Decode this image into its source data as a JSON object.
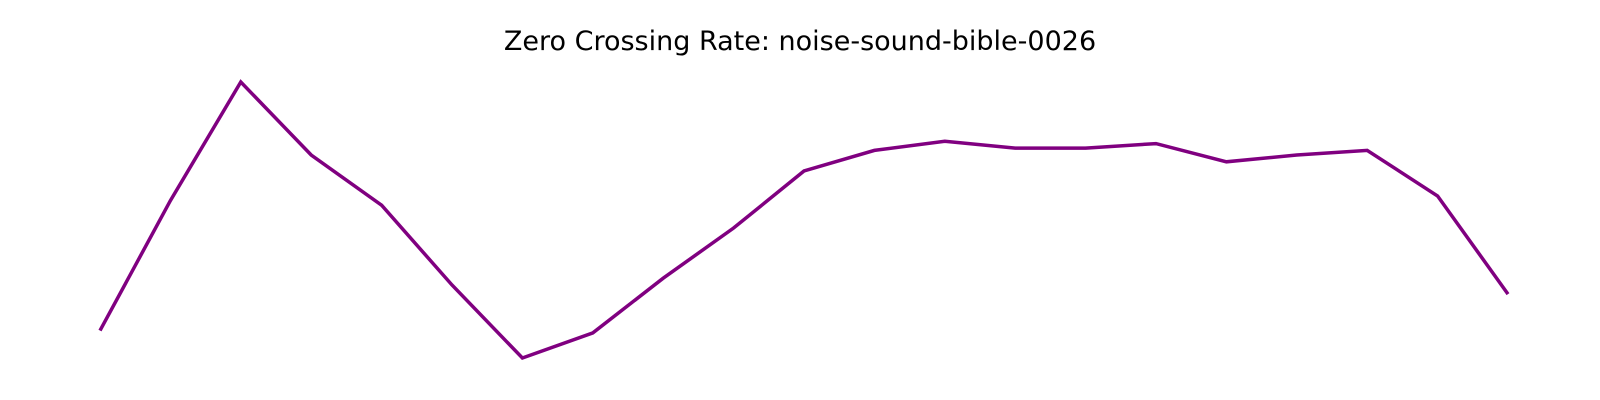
{
  "chart_data": {
    "type": "line",
    "title": "Zero Crossing Rate: noise-sound-bible-0026",
    "xlabel": "",
    "ylabel": "",
    "axes_visible": false,
    "grid": false,
    "x": [
      0,
      1,
      2,
      3,
      4,
      5,
      6,
      7,
      8,
      9,
      10,
      11,
      12,
      13,
      14,
      15,
      16,
      17,
      18,
      19,
      20
    ],
    "series": [
      {
        "values": [
          0.121,
          0.178,
          0.23,
          0.198,
          0.176,
          0.141,
          0.109,
          0.12,
          0.144,
          0.166,
          0.191,
          0.2,
          0.204,
          0.201,
          0.201,
          0.203,
          0.195,
          0.198,
          0.2,
          0.18,
          0.137
        ],
        "color": "#800080"
      }
    ]
  }
}
